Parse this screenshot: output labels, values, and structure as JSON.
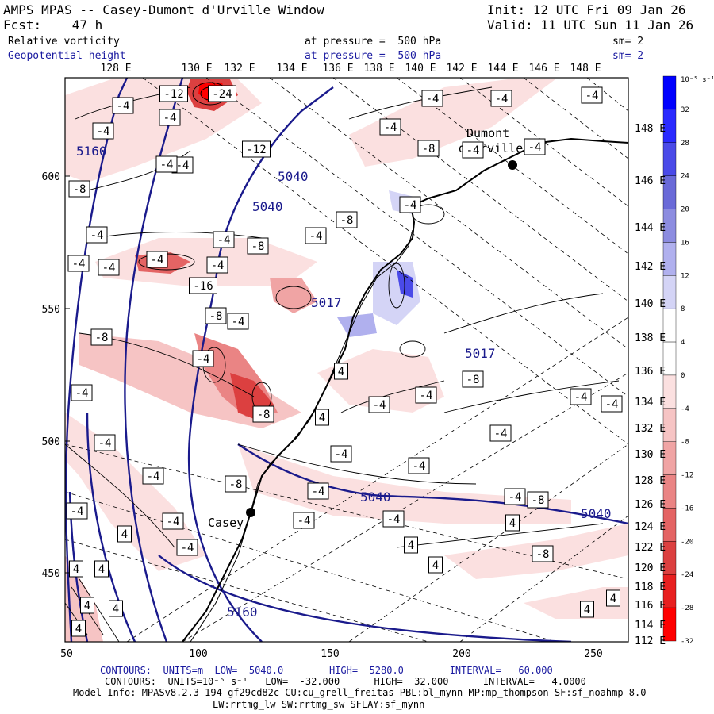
{
  "header": {
    "title": "AMPS MPAS -- Casey-Dumont d'Urville Window",
    "init": "Init: 12 UTC Fri 09 Jan 26",
    "fcst": "Fcst:    47 h",
    "valid": "Valid: 11 UTC Sun 11 Jan 26",
    "field1_name": "Relative vorticity",
    "field1_level": "at pressure =  500 hPa",
    "field1_sm": "sm= 2",
    "field2_name": "Geopotential height",
    "field2_level": "at pressure =  500 hPa",
    "field2_sm": "sm= 2"
  },
  "axes": {
    "top_lon": [
      "128 E",
      "130 E",
      "132 E",
      "134 E",
      "136 E",
      "138 E",
      "140 E",
      "142 E",
      "144 E",
      "146 E",
      "148 E"
    ],
    "right_lon": [
      "148 E",
      "146 E",
      "144 E",
      "142 E",
      "140 E",
      "138 E",
      "136 E",
      "134 E",
      "132 E",
      "130 E",
      "128 E",
      "126 E",
      "124 E",
      "122 E",
      "120 E",
      "118 E",
      "116 E",
      "114 E",
      "112 E"
    ],
    "left_y": [
      "600",
      "550",
      "500",
      "450"
    ],
    "bottom_x": [
      "50",
      "100",
      "150",
      "200",
      "250"
    ]
  },
  "colorbar": {
    "unit": "10⁻⁵ s⁻¹",
    "labels": [
      "32",
      "28",
      "24",
      "20",
      "16",
      "12",
      "8",
      "4",
      "0",
      "-4",
      "-8",
      "-12",
      "-16",
      "-20",
      "-24",
      "-28",
      "-32"
    ],
    "colors": [
      "#0000ff",
      "#2a2aff",
      "#4a4ae8",
      "#6a6ad8",
      "#8c8ce0",
      "#b0b0ee",
      "#d4d4f6",
      "#ffffff",
      "#ffffff",
      "#fbe0e0",
      "#f6c4c4",
      "#f0a4a4",
      "#ea8484",
      "#e46464",
      "#dc4040",
      "#e82020",
      "#ff0000"
    ]
  },
  "map_labels": {
    "station_dumont": "Dumont",
    "station_dumont2": "d'Urville",
    "station_casey": "Casey",
    "height_contours": [
      "5160",
      "5040",
      "5040",
      "5017",
      "5017",
      "5040",
      "5040",
      "5160"
    ],
    "vort_boxes": [
      "-12",
      "-24",
      "-4",
      "-4",
      "-4",
      "-4",
      "-8",
      "-12",
      "-4",
      "-4",
      "-8",
      "-4",
      "-4",
      "-4",
      "-4",
      "-4",
      "-4",
      "-4",
      "-8",
      "-16",
      "-8",
      "-8",
      "-4",
      "-4",
      "-4",
      "-4",
      "-4",
      "-4",
      "-8",
      "-4",
      "-4",
      "-4",
      "-4",
      "-4",
      "-4",
      "-8",
      "-4",
      "-4",
      "-8",
      "-4",
      "-8",
      "4",
      "4",
      "4",
      "4",
      "4",
      "4",
      "4",
      "4",
      "4",
      "4",
      "4",
      "4",
      "4",
      "-4",
      "-4",
      "-4",
      "-8",
      "-4",
      "-4",
      "-4",
      "-4",
      "-4",
      "-8",
      "-4",
      "-4"
    ]
  },
  "footer": {
    "line1": "CONTOURS:  UNITS=m  LOW=  5040.0        HIGH=  5280.0        INTERVAL=   60.000",
    "line2": "CONTOURS:  UNITS=10⁻⁵ s⁻¹   LOW=  -32.000      HIGH=  32.000      INTERVAL=   4.0000",
    "line3": "Model Info: MPASv8.2.3-194-gf29cd82c CU:cu_grell_freitas PBL:bl_mynn MP:mp_thompson SF:sf_noahmp 8.0",
    "line4": "LW:rrtmg_lw SW:rrtmg_sw SFLAY:sf_mynn"
  }
}
